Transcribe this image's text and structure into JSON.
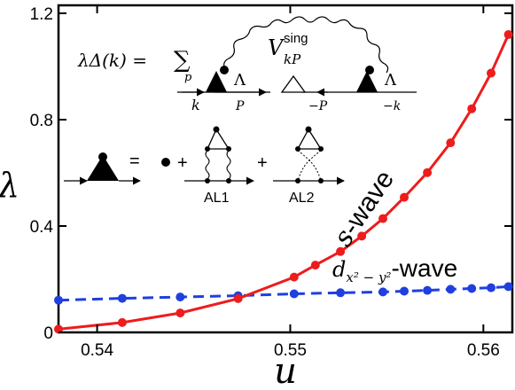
{
  "chart_data": {
    "type": "line",
    "xlabel": "u",
    "ylabel": "λ",
    "xlim": [
      0.538,
      0.5615
    ],
    "ylim": [
      0,
      1.23
    ],
    "xticks": [
      0.54,
      0.55,
      0.56
    ],
    "xtick_labels": [
      "0.54",
      "0.55",
      "0.56"
    ],
    "yticks": [
      0,
      0.4,
      0.8,
      1.2
    ],
    "ytick_labels": [
      "0",
      "0.4",
      "0.8",
      "1.2"
    ],
    "grid": false,
    "colors": {
      "s_wave": "#ee1c1c",
      "d_wave": "#1f3fe0",
      "axes": "#000000"
    },
    "series": [
      {
        "name": "s-wave",
        "label_main": "s",
        "label_suffix": "-wave",
        "line_style": "solid",
        "x": [
          0.538,
          0.5413,
          0.5443,
          0.5473,
          0.5502,
          0.5513,
          0.5526,
          0.5537,
          0.5548,
          0.5559,
          0.5571,
          0.5583,
          0.5594,
          0.5604,
          0.5613
        ],
        "y": [
          0.012,
          0.037,
          0.073,
          0.127,
          0.208,
          0.253,
          0.304,
          0.362,
          0.428,
          0.508,
          0.601,
          0.713,
          0.841,
          0.975,
          1.12
        ]
      },
      {
        "name": "dx²−y²-wave",
        "label_main": "d",
        "label_sub": "x² − y²",
        "label_suffix": "-wave",
        "line_style": "dashed",
        "x": [
          0.538,
          0.5413,
          0.5443,
          0.5473,
          0.5502,
          0.5526,
          0.5548,
          0.5559,
          0.5571,
          0.5583,
          0.5594,
          0.5604,
          0.5613
        ],
        "y": [
          0.121,
          0.128,
          0.133,
          0.138,
          0.145,
          0.149,
          0.152,
          0.155,
          0.158,
          0.162,
          0.165,
          0.168,
          0.172
        ]
      }
    ],
    "inset": {
      "equation_lhs": "λΔ(k) = ",
      "sum_symbol": "∑",
      "sum_index": "p",
      "interaction_base": "V",
      "interaction_sup": "sing",
      "interaction_sub": "kP",
      "vertex_label": "Λ",
      "momenta": [
        "k",
        "P",
        "−P",
        "−k"
      ],
      "vertex_def_equals": "=",
      "plus": "+",
      "diagram_labels": [
        "AL1",
        "AL2"
      ]
    }
  }
}
